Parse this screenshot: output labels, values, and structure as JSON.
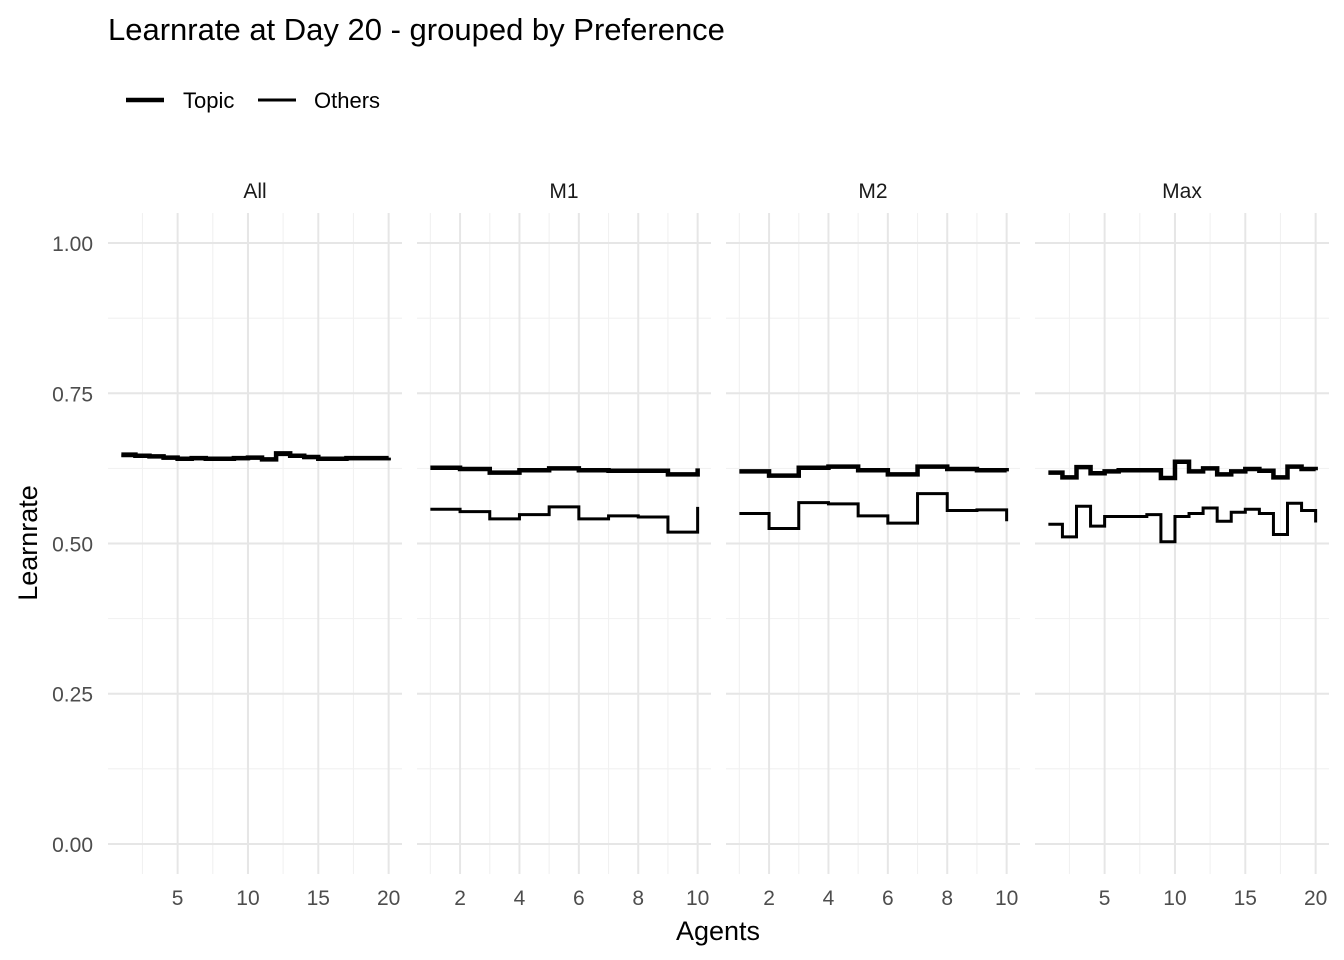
{
  "chart_data": {
    "type": "line",
    "title": "Learnrate at Day 20 - grouped by Preference",
    "xlabel": "Agents",
    "ylabel": "Learnrate",
    "ylim": [
      -0.05,
      1.05
    ],
    "y_ticks": [
      0,
      0.25,
      0.5,
      0.75,
      1
    ],
    "y_tick_labels": [
      "0.00",
      "0.25",
      "0.50",
      "0.75",
      "1.00"
    ],
    "grid": true,
    "legend": {
      "position": "top-left",
      "entries": [
        "Topic",
        "Others"
      ]
    },
    "panels": [
      {
        "label": "All",
        "xlim": [
          0.05,
          20.95
        ],
        "x_ticks": [
          5,
          10,
          15,
          20
        ],
        "series": [
          {
            "name": "Topic",
            "x": [
              1,
              2,
              3,
              4,
              5,
              6,
              7,
              8,
              9,
              10,
              11,
              12,
              13,
              14,
              15,
              16,
              17,
              18,
              19,
              20
            ],
            "values": [
              0.648,
              0.646,
              0.645,
              0.643,
              0.641,
              0.642,
              0.641,
              0.641,
              0.642,
              0.643,
              0.64,
              0.65,
              0.646,
              0.644,
              0.641,
              0.641,
              0.642,
              0.642,
              0.642,
              0.643
            ]
          },
          {
            "name": "Others",
            "x": [
              1,
              2,
              3,
              4,
              5,
              6,
              7,
              8,
              9,
              10,
              11,
              12,
              13,
              14,
              15,
              16,
              17,
              18,
              19,
              20
            ],
            "values": [
              0.646,
              0.645,
              0.644,
              0.642,
              0.64,
              0.641,
              0.64,
              0.64,
              0.641,
              0.642,
              0.639,
              0.648,
              0.645,
              0.643,
              0.64,
              0.64,
              0.641,
              0.641,
              0.641,
              0.642
            ]
          }
        ]
      },
      {
        "label": "M1",
        "xlim": [
          0.55,
          10.45
        ],
        "x_ticks": [
          2,
          4,
          6,
          8,
          10
        ],
        "series": [
          {
            "name": "Topic",
            "x": [
              1,
              2,
              3,
              4,
              5,
              6,
              7,
              8,
              9,
              10
            ],
            "values": [
              0.626,
              0.624,
              0.618,
              0.622,
              0.625,
              0.622,
              0.621,
              0.621,
              0.615,
              0.625
            ]
          },
          {
            "name": "Others",
            "x": [
              1,
              2,
              3,
              4,
              5,
              6,
              7,
              8,
              9,
              10
            ],
            "values": [
              0.557,
              0.553,
              0.541,
              0.548,
              0.561,
              0.541,
              0.546,
              0.544,
              0.519,
              0.561
            ]
          }
        ]
      },
      {
        "label": "M2",
        "xlim": [
          0.55,
          10.45
        ],
        "x_ticks": [
          2,
          4,
          6,
          8,
          10
        ],
        "series": [
          {
            "name": "Topic",
            "x": [
              1,
              2,
              3,
              4,
              5,
              6,
              7,
              8,
              9,
              10
            ],
            "values": [
              0.62,
              0.613,
              0.626,
              0.628,
              0.622,
              0.615,
              0.628,
              0.624,
              0.622,
              0.62
            ]
          },
          {
            "name": "Others",
            "x": [
              1,
              2,
              3,
              4,
              5,
              6,
              7,
              8,
              9,
              10
            ],
            "values": [
              0.55,
              0.525,
              0.568,
              0.566,
              0.546,
              0.534,
              0.583,
              0.555,
              0.556,
              0.537
            ]
          }
        ]
      },
      {
        "label": "Max",
        "xlim": [
          0.05,
          20.95
        ],
        "x_ticks": [
          5,
          10,
          15,
          20
        ],
        "series": [
          {
            "name": "Topic",
            "x": [
              1,
              2,
              3,
              4,
              5,
              6,
              7,
              8,
              9,
              10,
              11,
              12,
              13,
              14,
              15,
              16,
              17,
              18,
              19,
              20
            ],
            "values": [
              0.618,
              0.61,
              0.627,
              0.617,
              0.62,
              0.622,
              0.622,
              0.622,
              0.609,
              0.636,
              0.62,
              0.625,
              0.615,
              0.62,
              0.624,
              0.621,
              0.61,
              0.628,
              0.624,
              0.622
            ]
          },
          {
            "name": "Others",
            "x": [
              1,
              2,
              3,
              4,
              5,
              6,
              7,
              8,
              9,
              10,
              11,
              12,
              13,
              14,
              15,
              16,
              17,
              18,
              19,
              20
            ],
            "values": [
              0.532,
              0.511,
              0.562,
              0.529,
              0.545,
              0.545,
              0.545,
              0.548,
              0.503,
              0.545,
              0.55,
              0.559,
              0.537,
              0.552,
              0.557,
              0.55,
              0.515,
              0.567,
              0.555,
              0.535
            ]
          }
        ]
      }
    ]
  }
}
